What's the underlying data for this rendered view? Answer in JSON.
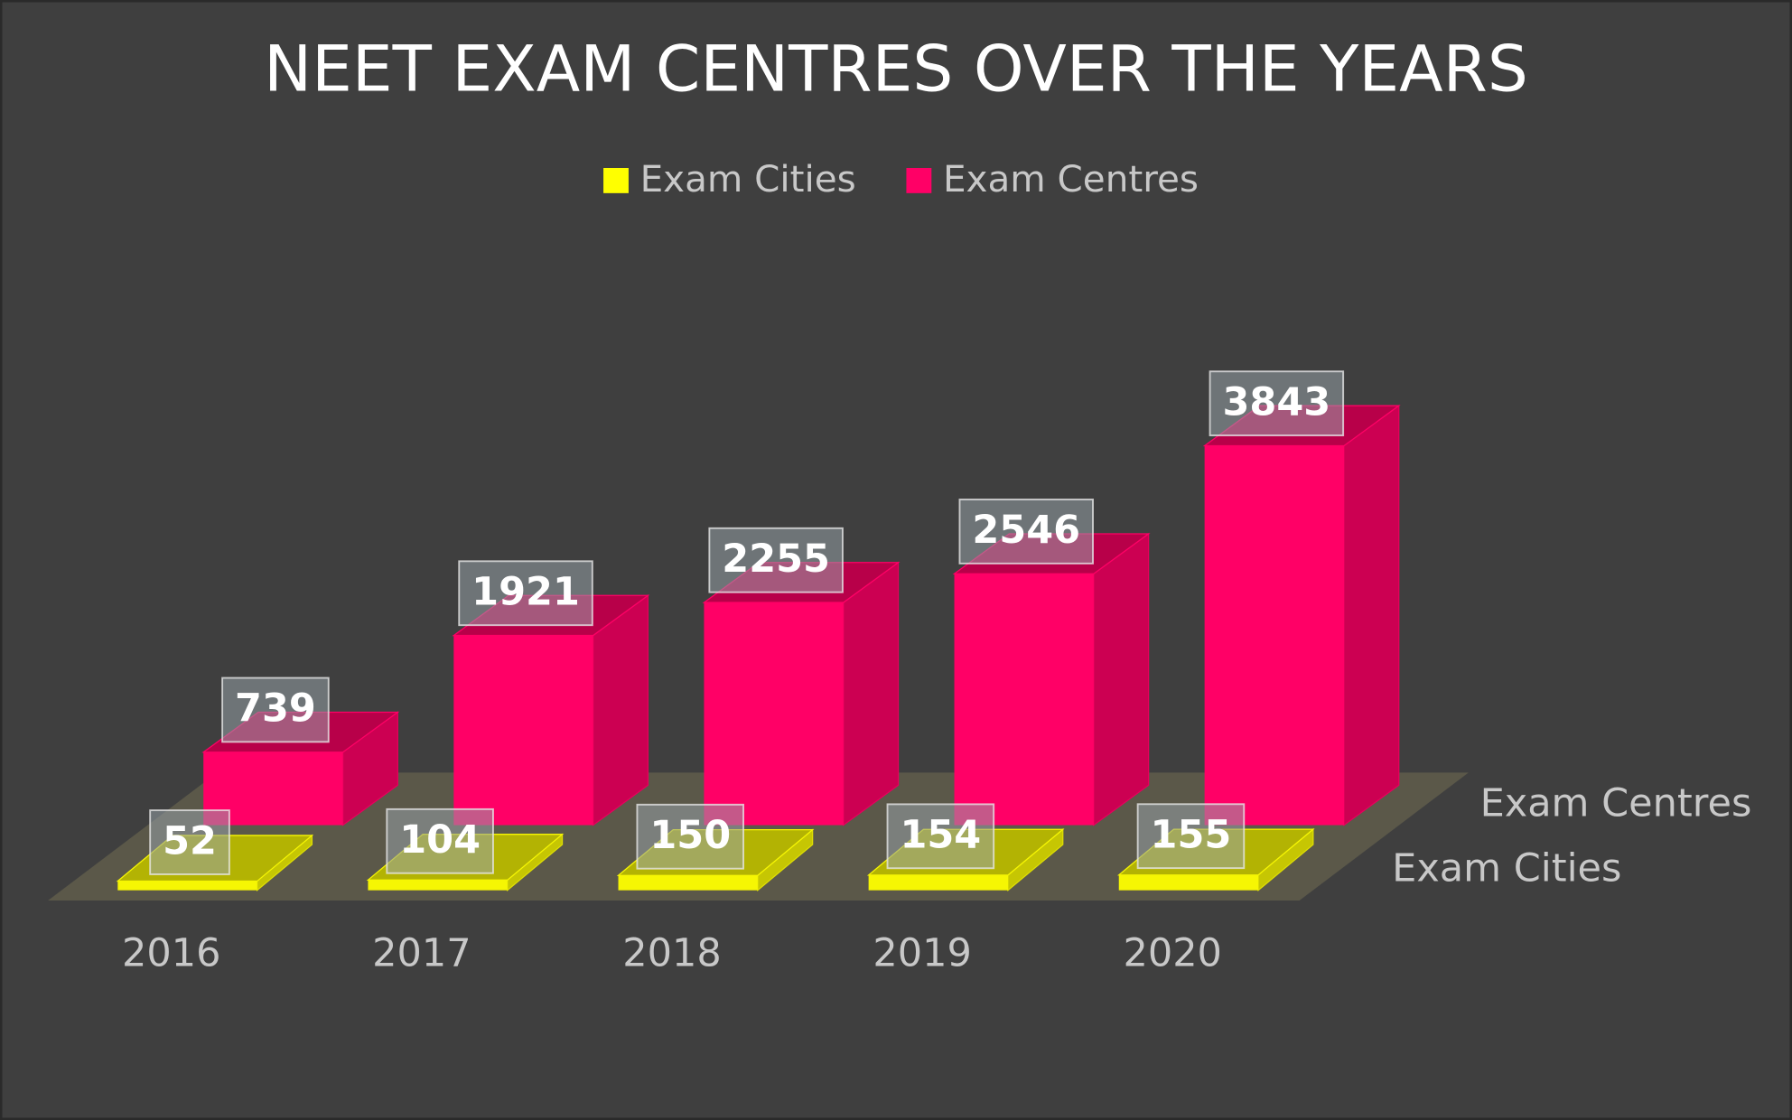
{
  "chart_data": {
    "type": "bar3d",
    "title": "NEET EXAM CENTRES OVER THE YEARS",
    "categories": [
      "2016",
      "2017",
      "2018",
      "2019",
      "2020"
    ],
    "series": [
      {
        "name": "Exam Cities",
        "color": "#ffff00",
        "values": [
          52,
          104,
          150,
          154,
          155
        ]
      },
      {
        "name": "Exam Centres",
        "color": "#ff0066",
        "values": [
          739,
          1921,
          2255,
          2546,
          3843
        ]
      }
    ],
    "legend": "top"
  }
}
